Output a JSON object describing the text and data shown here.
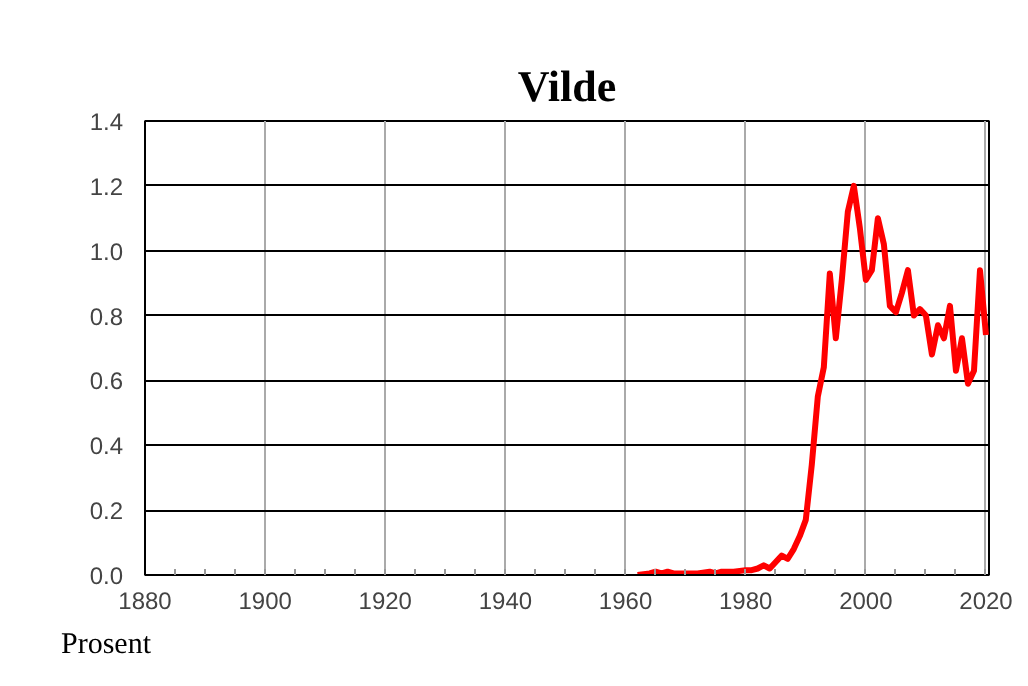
{
  "chart_data": {
    "type": "line",
    "title": "Vilde",
    "ylabel": "Prosent",
    "x": [
      1962,
      1964,
      1965,
      1966,
      1967,
      1968,
      1970,
      1972,
      1974,
      1975,
      1976,
      1977,
      1978,
      1980,
      1981,
      1982,
      1983,
      1984,
      1985,
      1986,
      1987,
      1988,
      1989,
      1990,
      1991,
      1992,
      1993,
      1994,
      1995,
      1996,
      1997,
      1998,
      1999,
      2000,
      2001,
      2002,
      2003,
      2004,
      2005,
      2006,
      2007,
      2008,
      2009,
      2010,
      2011,
      2012,
      2013,
      2014,
      2015,
      2016,
      2017,
      2018,
      2019,
      2020
    ],
    "series": [
      {
        "color": "#ff0000",
        "values": [
          0.0,
          0.005,
          0.01,
          0.005,
          0.01,
          0.005,
          0.005,
          0.005,
          0.01,
          0.005,
          0.01,
          0.01,
          0.01,
          0.015,
          0.015,
          0.02,
          0.03,
          0.02,
          0.04,
          0.06,
          0.05,
          0.08,
          0.12,
          0.17,
          0.34,
          0.55,
          0.64,
          0.93,
          0.73,
          0.91,
          1.12,
          1.2,
          1.07,
          0.91,
          0.94,
          1.1,
          1.02,
          0.83,
          0.81,
          0.87,
          0.94,
          0.8,
          0.82,
          0.8,
          0.68,
          0.77,
          0.73,
          0.83,
          0.63,
          0.73,
          0.59,
          0.63,
          0.94,
          0.74
        ]
      }
    ],
    "xlim": [
      1880,
      2020.5
    ],
    "xticks": [
      1880,
      1900,
      1920,
      1940,
      1960,
      1980,
      2000,
      2020
    ],
    "ylim": [
      0,
      1.4
    ],
    "yticks": [
      {
        "value": 0,
        "label": "0.0"
      },
      {
        "value": 0.2,
        "label": "0.2"
      },
      {
        "value": 0.4,
        "label": "0.4"
      },
      {
        "value": 0.6,
        "label": "0.6"
      },
      {
        "value": 0.8,
        "label": "0.8"
      },
      {
        "value": 1.0,
        "label": "1.0"
      },
      {
        "value": 1.2,
        "label": "1.2"
      },
      {
        "value": 1.4,
        "label": "1.4"
      }
    ],
    "grid": true,
    "line_style": "solid",
    "marker": "none"
  }
}
